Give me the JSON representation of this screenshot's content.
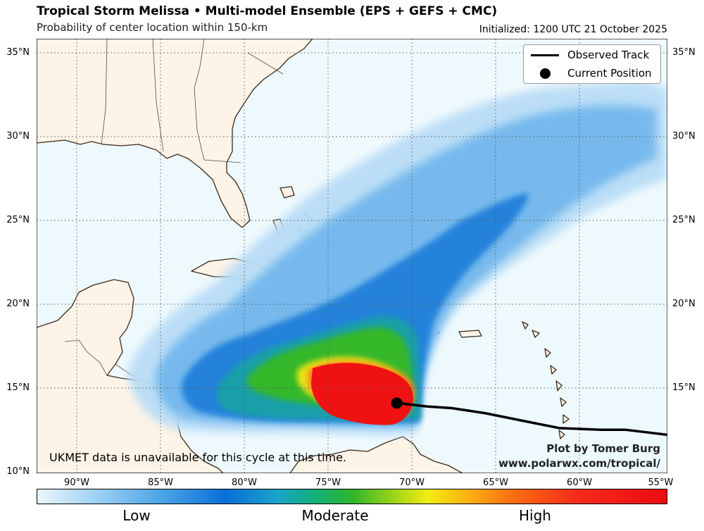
{
  "header": {
    "title": "Tropical Storm Melissa • Multi-model Ensemble (EPS + GEFS + CMC)",
    "subtitle": "Probability of center location within 150-km",
    "initialized": "Initialized: 1200 UTC 21 October 2025"
  },
  "map": {
    "lat_labels": [
      "35°N",
      "30°N",
      "25°N",
      "20°N",
      "15°N",
      "10°N"
    ],
    "lon_labels": [
      "90°W",
      "85°W",
      "80°W",
      "75°W",
      "70°W",
      "65°W",
      "60°W",
      "55°W"
    ],
    "lat_range": [
      10,
      36
    ],
    "lon_range": [
      -93,
      -55
    ],
    "grid": true,
    "current_position": {
      "lat": 14.2,
      "lon": -71.3
    },
    "observed_track": [
      [
        -71.3,
        14.2
      ],
      [
        -69.5,
        14.0
      ],
      [
        -68.0,
        13.9
      ],
      [
        -66,
        13.6
      ],
      [
        -64,
        13.2
      ],
      [
        -61.5,
        12.7
      ],
      [
        -59,
        12.6
      ],
      [
        -57.5,
        12.6
      ],
      [
        -55,
        12.3
      ]
    ]
  },
  "legend": {
    "items": [
      {
        "label": "Observed Track",
        "symbol": "line"
      },
      {
        "label": "Current Position",
        "symbol": "dot"
      }
    ]
  },
  "colorbar": {
    "labels": [
      "Low",
      "Moderate",
      "High"
    ]
  },
  "notes": {
    "ukmet": "UKMET data is unavailable for this cycle at this time.",
    "credit_1": "Plot by Tomer Burg",
    "credit_2": "www.polarwx.com/tropical/"
  },
  "colors": {
    "ocean": "#eef9fd",
    "land": "#fdf3e7",
    "track": "#000000",
    "high": "#ee0a10",
    "low": "#a9d7f4"
  }
}
